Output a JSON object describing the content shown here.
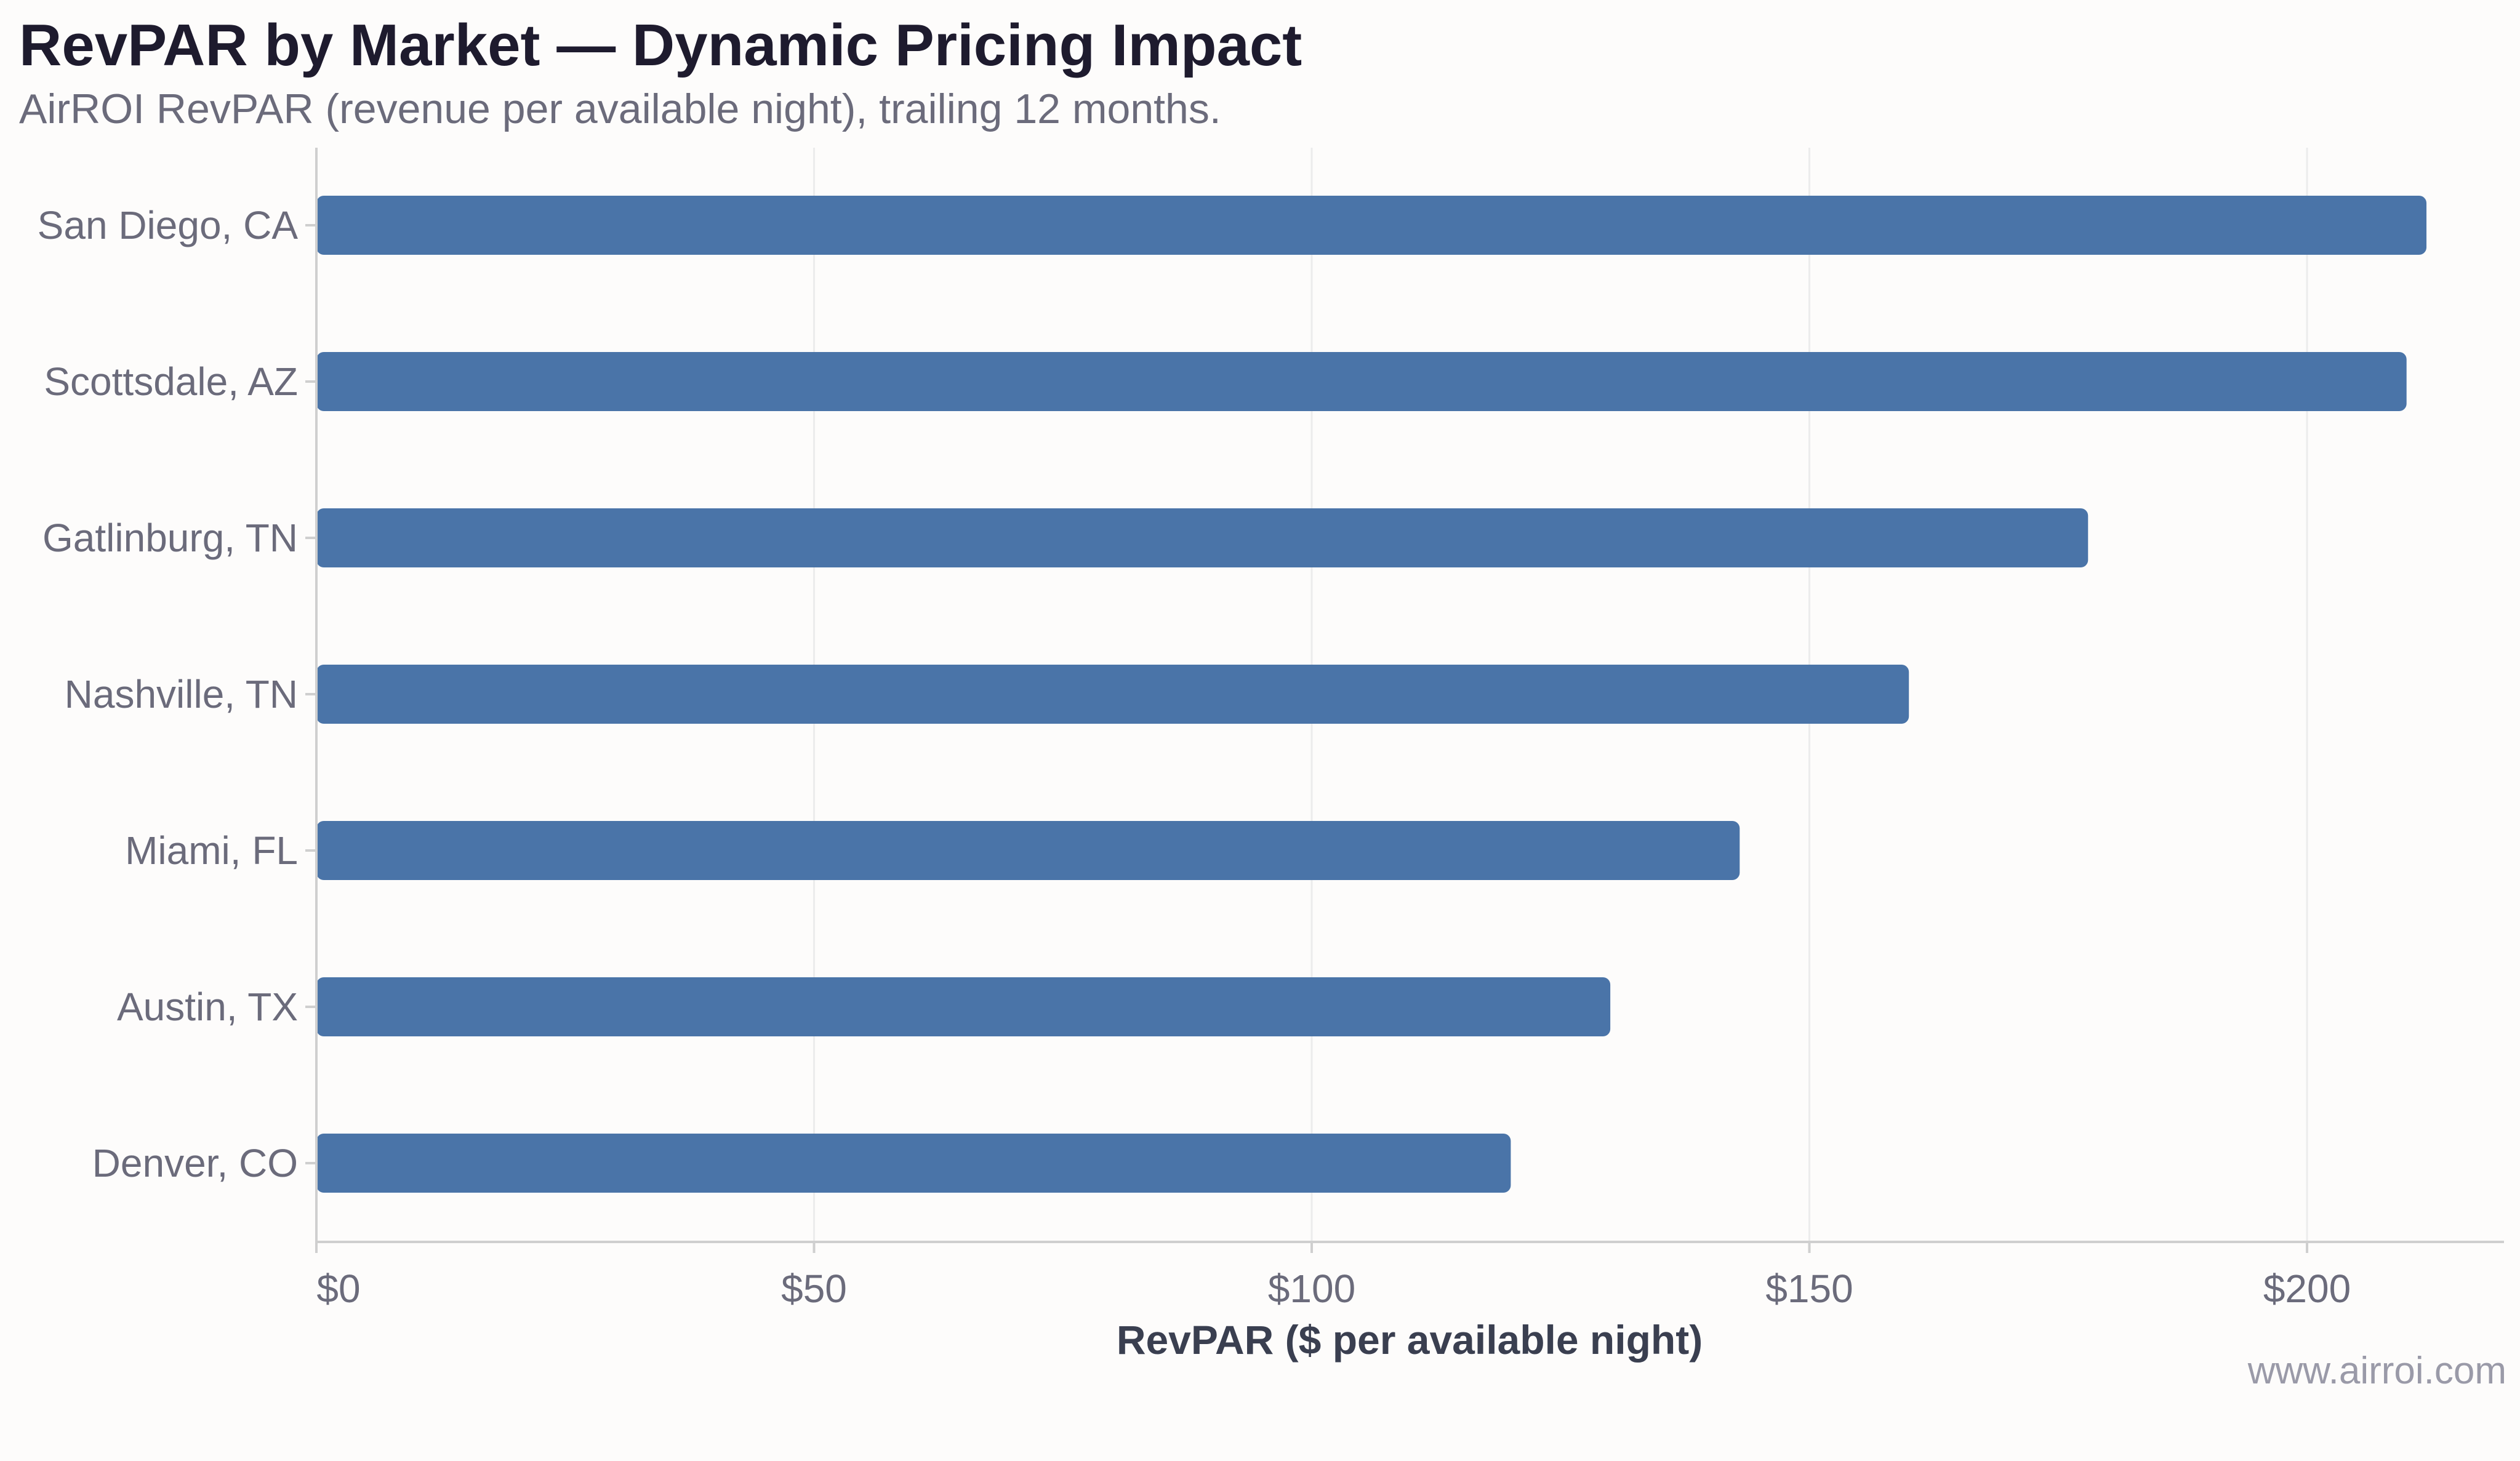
{
  "header": {
    "title": "RevPAR by Market — Dynamic Pricing Impact",
    "subtitle": "AirROI RevPAR (revenue per available night), trailing 12 months."
  },
  "footer": {
    "source": "www.airroi.com"
  },
  "colors": {
    "bar": "#4a74a8",
    "gridline": "#ececec",
    "axis_line": "#cfcfcf",
    "tick_label": "#6b6b7b",
    "axis_title": "#3a3f50",
    "title": "#1e1b2e",
    "background": "#fdfcfb"
  },
  "chart_data": {
    "type": "bar",
    "orientation": "horizontal",
    "categories": [
      "San Diego, CA",
      "Scottsdale, AZ",
      "Gatlinburg, TN",
      "Nashville, TN",
      "Miami, FL",
      "Austin, TX",
      "Denver, CO"
    ],
    "values": [
      212,
      210,
      178,
      160,
      143,
      130,
      120
    ],
    "xlabel": "RevPAR ($ per available night)",
    "ylabel": "",
    "xlim": [
      0,
      220
    ],
    "xticks": [
      0,
      50,
      100,
      150,
      200
    ],
    "xtick_labels": [
      "$0",
      "$50",
      "$100",
      "$150",
      "$200"
    ],
    "grid": "vertical",
    "legend": "none"
  }
}
